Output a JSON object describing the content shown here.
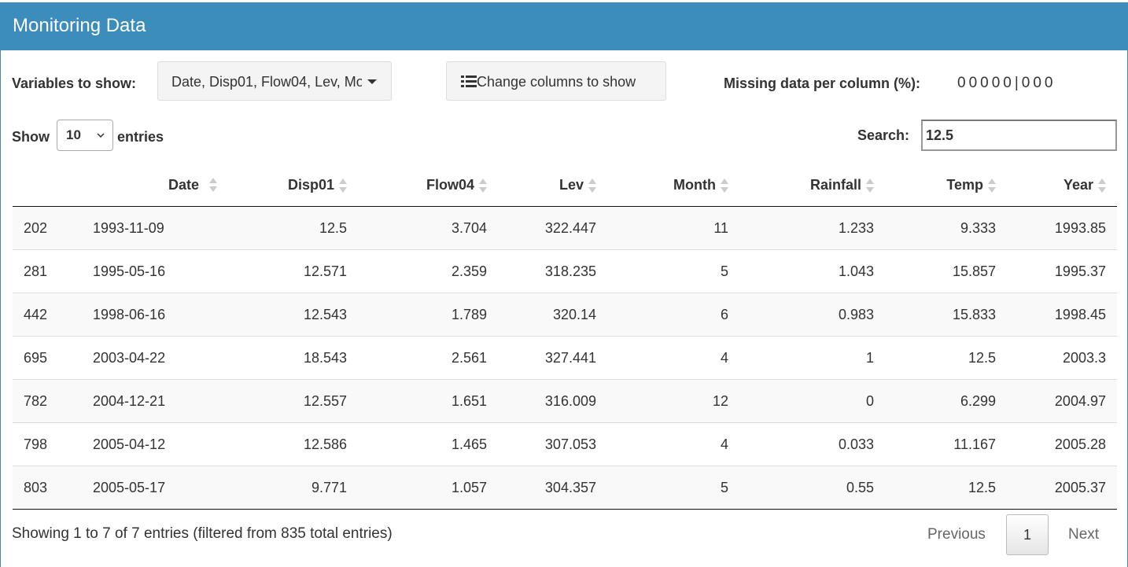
{
  "header": {
    "title": "Monitoring Data"
  },
  "controls": {
    "variables_label": "Variables to show:",
    "variables_value": "Date, Disp01, Flow04, Lev, Mo",
    "columns_button": "Change columns to show",
    "missing_label": "Missing data per column (%):",
    "missing_value": "00000|000"
  },
  "length": {
    "before": "Show",
    "value": "10",
    "after": "entries"
  },
  "search": {
    "label": "Search:",
    "value": "12.5"
  },
  "table": {
    "columns": [
      "",
      "Date",
      "Disp01",
      "Flow04",
      "Lev",
      "Month",
      "Rainfall",
      "Temp",
      "Year"
    ],
    "rows": [
      [
        202,
        "1993-11-09",
        12.5,
        3.704,
        322.447,
        11,
        1.233,
        9.333,
        1993.85
      ],
      [
        281,
        "1995-05-16",
        12.571,
        2.359,
        318.235,
        5,
        1.043,
        15.857,
        1995.37
      ],
      [
        442,
        "1998-06-16",
        12.543,
        1.789,
        320.14,
        6,
        0.983,
        15.833,
        1998.45
      ],
      [
        695,
        "2003-04-22",
        18.543,
        2.561,
        327.441,
        4,
        1,
        12.5,
        2003.3
      ],
      [
        782,
        "2004-12-21",
        12.557,
        1.651,
        316.009,
        12,
        0,
        6.299,
        2004.97
      ],
      [
        798,
        "2005-04-12",
        12.586,
        1.465,
        307.053,
        4,
        0.033,
        11.167,
        2005.28
      ],
      [
        803,
        "2005-05-17",
        9.771,
        1.057,
        304.357,
        5,
        0.55,
        12.5,
        2005.37
      ]
    ]
  },
  "footer": {
    "info": "Showing 1 to 7 of 7 entries (filtered from 835 total entries)",
    "previous": "Previous",
    "page": "1",
    "next": "Next"
  }
}
